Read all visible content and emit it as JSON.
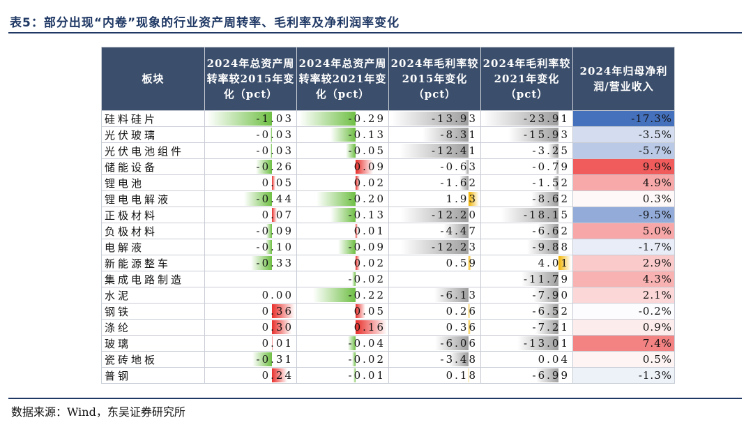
{
  "title": "表5：部分出现“内卷”现象的行业资产周转率、毛利率及净利润率变化",
  "source": "数据来源：Wind，东吴证券研究所",
  "table": {
    "headers": [
      "板块",
      "2024年总资产周转率较2015年变化（pct）",
      "2024年总资产周转率较2021年变化（pct）",
      "2024年毛利率较2015年变化（pct）",
      "2024年毛利率较2021年变化（pct）",
      "2024年归母净利润/营业收入"
    ],
    "rows": [
      {
        "name": "硅料硅片",
        "v": [
          "-1.03",
          "-0.29",
          "-13.93",
          "-23.91"
        ],
        "m": "-17.3%"
      },
      {
        "name": "光伏玻璃",
        "v": [
          "-0.03",
          "-0.13",
          "-8.31",
          "-15.93"
        ],
        "m": "-3.5%"
      },
      {
        "name": "光伏电池组件",
        "v": [
          "-0.03",
          "-0.05",
          "-12.41",
          "-3.25"
        ],
        "m": "-5.7%"
      },
      {
        "name": "储能设备",
        "v": [
          "-0.26",
          "0.09",
          "-0.63",
          "-0.79"
        ],
        "m": "9.9%"
      },
      {
        "name": "锂电池",
        "v": [
          "0.05",
          "0.02",
          "-1.62",
          "-1.52"
        ],
        "m": "4.9%"
      },
      {
        "name": "锂电电解液",
        "v": [
          "-0.44",
          "-0.20",
          "1.93",
          "-8.62"
        ],
        "m": "0.3%"
      },
      {
        "name": "正极材料",
        "v": [
          "0.07",
          "-0.13",
          "-12.20",
          "-18.15"
        ],
        "m": "-9.5%"
      },
      {
        "name": "负极材料",
        "v": [
          "-0.09",
          "0.01",
          "-4.47",
          "-6.62"
        ],
        "m": "5.0%"
      },
      {
        "name": "电解液",
        "v": [
          "-0.10",
          "-0.09",
          "-12.23",
          "-9.88"
        ],
        "m": "-1.7%"
      },
      {
        "name": "新能源整车",
        "v": [
          "-0.33",
          "0.02",
          "0.59",
          "4.01"
        ],
        "m": "2.9%"
      },
      {
        "name": "集成电路制造",
        "v": [
          "",
          "-0.02",
          "",
          "-11.79"
        ],
        "m": "4.3%"
      },
      {
        "name": "水泥",
        "v": [
          "0.00",
          "-0.22",
          "-6.13",
          "-7.90"
        ],
        "m": "2.1%"
      },
      {
        "name": "钢铁",
        "v": [
          "0.36",
          "0.05",
          "0.26",
          "-6.52"
        ],
        "m": "-0.2%"
      },
      {
        "name": "涤纶",
        "v": [
          "0.30",
          "0.16",
          "0.36",
          "-7.21"
        ],
        "m": "0.9%"
      },
      {
        "name": "玻璃",
        "v": [
          "0.01",
          "-0.04",
          "-6.06",
          "-13.01"
        ],
        "m": "7.4%"
      },
      {
        "name": "瓷砖地板",
        "v": [
          "-0.31",
          "-0.02",
          "-3.48",
          "0.04"
        ],
        "m": "0.5%"
      },
      {
        "name": "普钢",
        "v": [
          "0.24",
          "-0.01",
          "0.18",
          "-6.99"
        ],
        "m": "-1.3%"
      }
    ]
  },
  "colors": {
    "header_bg": "#3b4e6b",
    "turnover_neg": "#6fbf45",
    "turnover_pos": "#e8302c",
    "margin_neg": "#9e9e9e",
    "margin_pos": "#f2b400",
    "net_pos": "#ee4a4a",
    "net_neg": "#3a68b8",
    "title_color": "#1f3864"
  }
}
